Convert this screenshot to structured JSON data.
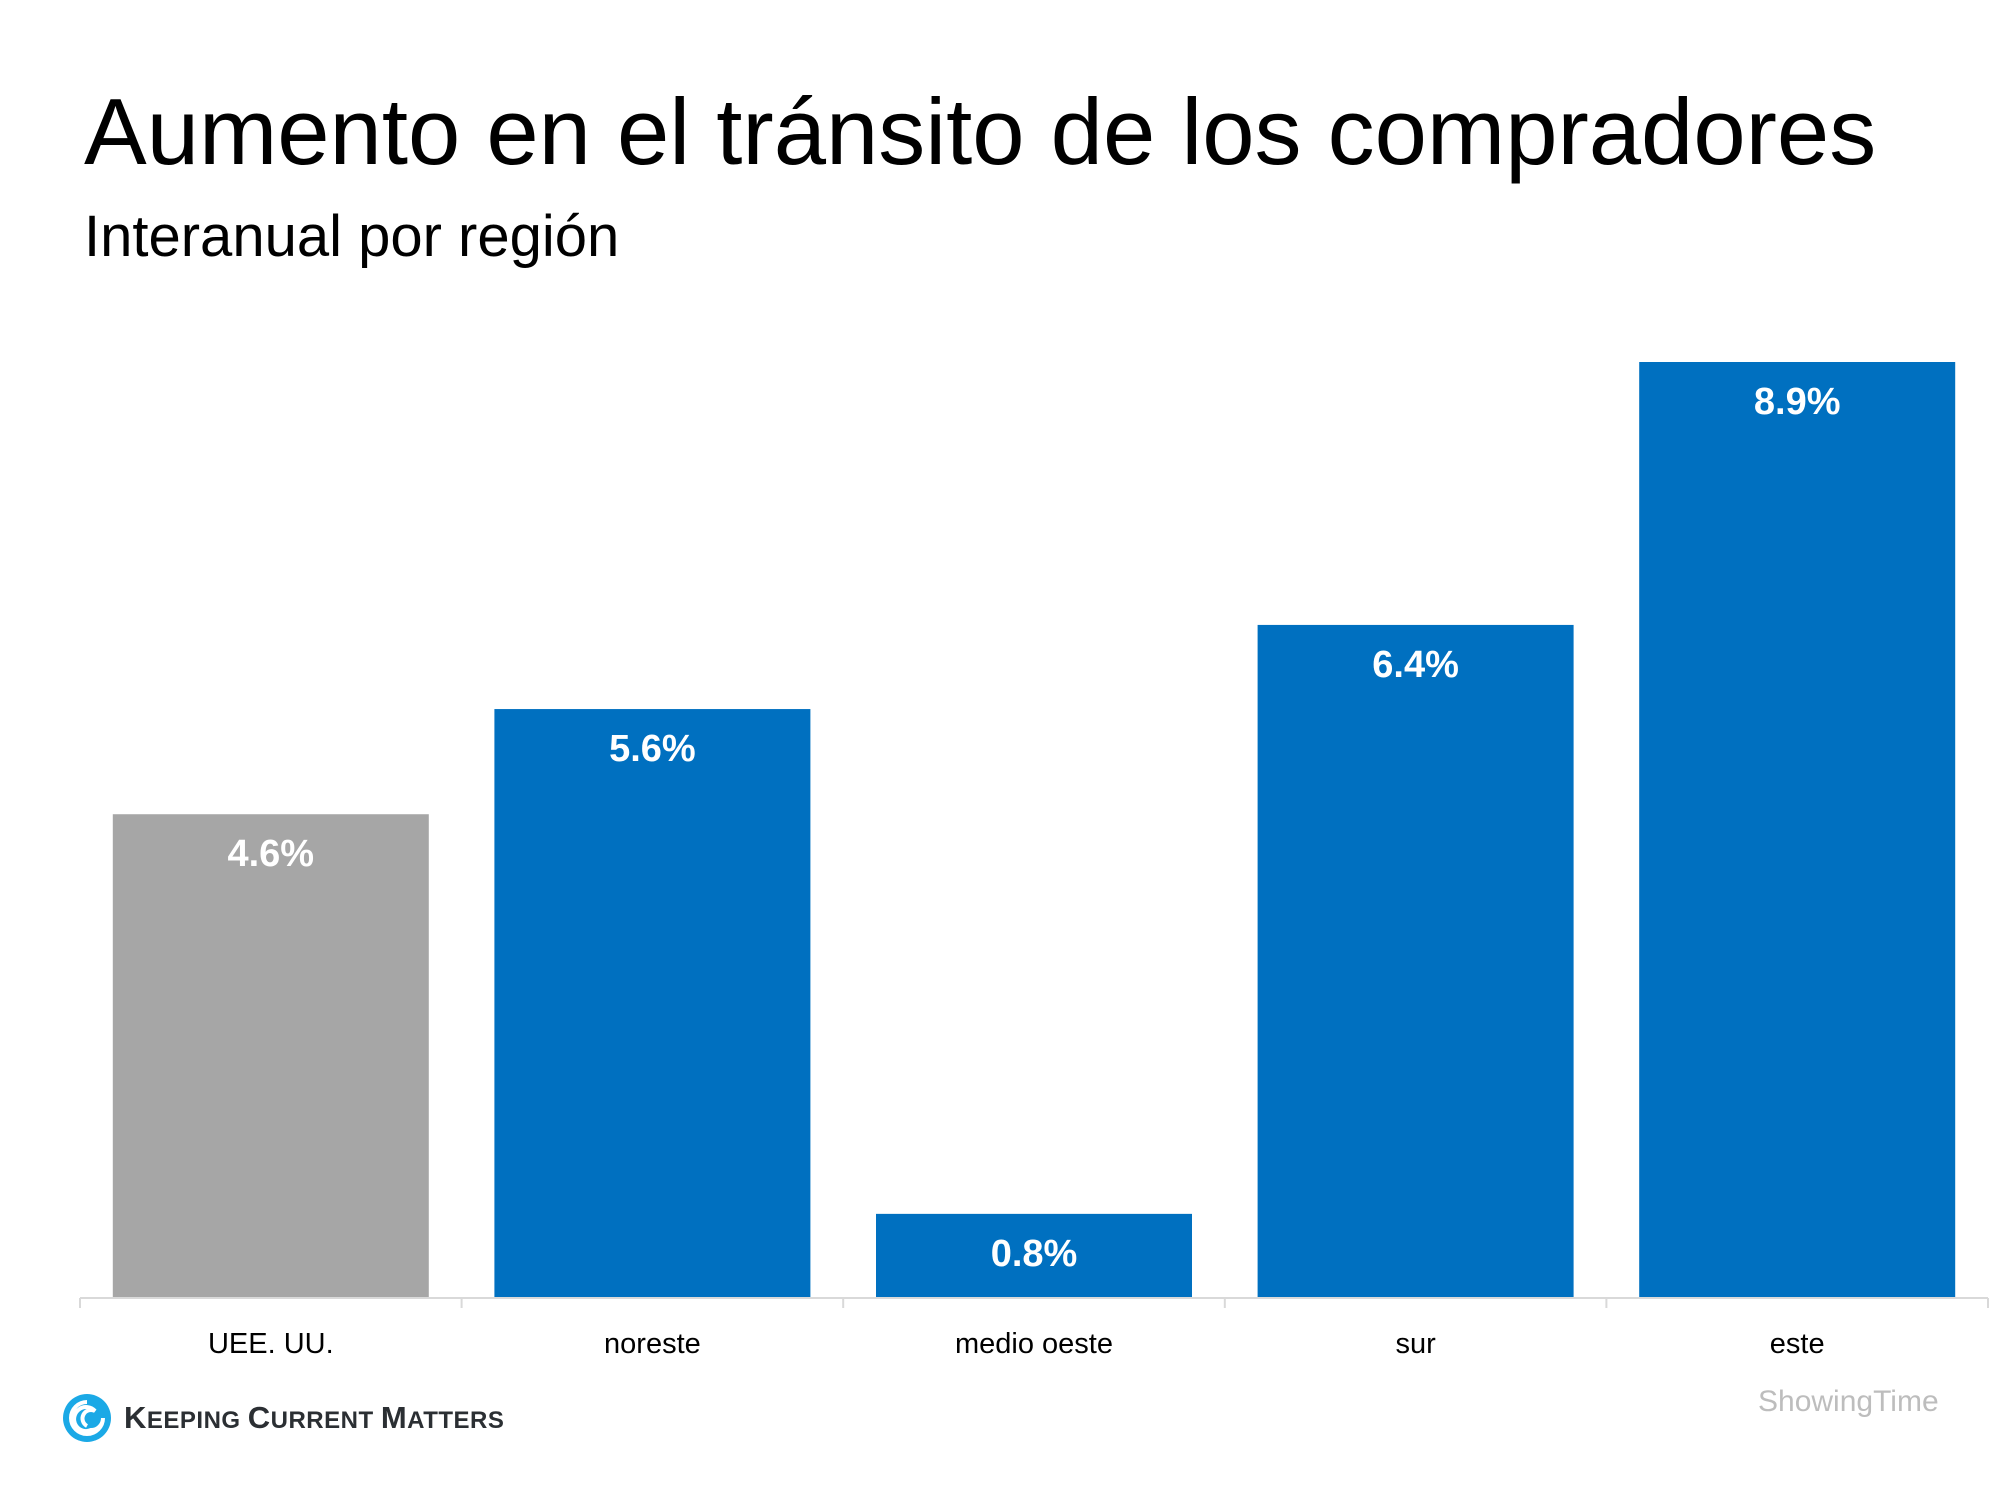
{
  "chart_data": {
    "type": "bar",
    "title": "Aumento en el tránsito de los compradores",
    "subtitle": "Interanual por región",
    "categories": [
      "UEE. UU.",
      "noreste",
      "medio oeste",
      "sur",
      "este"
    ],
    "values": [
      4.6,
      5.6,
      0.8,
      6.4,
      8.9
    ],
    "data_labels": [
      "4.6%",
      "5.6%",
      "0.8%",
      "6.4%",
      "8.9%"
    ],
    "colors": [
      "#a6a6a6",
      "#0070c0",
      "#0070c0",
      "#0070c0",
      "#0070c0"
    ],
    "ylim": [
      0,
      8.9
    ],
    "grid": false,
    "xlabel": "",
    "ylabel": ""
  },
  "source": "ShowingTime",
  "logo": {
    "text": "Keeping Current Matters",
    "color": "#1ba9e6"
  }
}
